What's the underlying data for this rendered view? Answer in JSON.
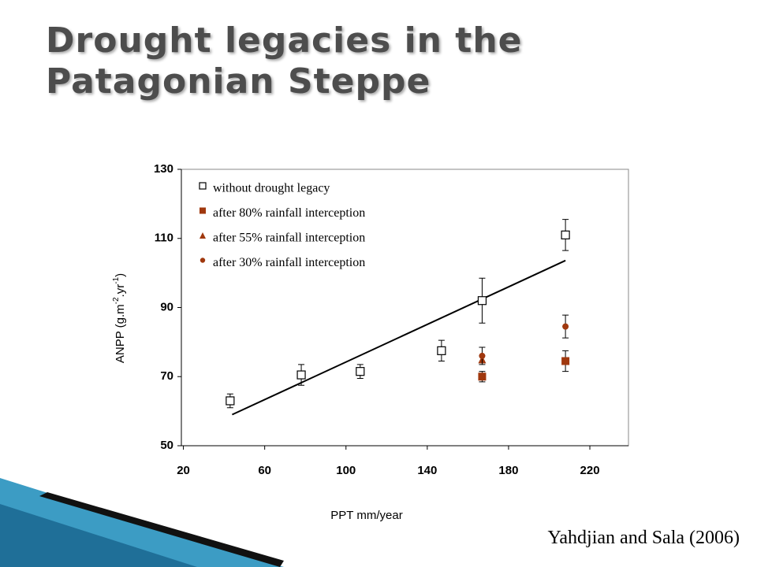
{
  "chart_data": {
    "type": "scatter",
    "title": "Drought legacies in the Patagonian Steppe",
    "x_label": "PPT mm/year",
    "y_label_parts": [
      "ANPP (g.m",
      "-2",
      ".yr",
      "-1",
      ")"
    ],
    "citation": "Yahdjian and Sala (2006)",
    "xlim": [
      19,
      239
    ],
    "xticks": [
      20,
      60,
      100,
      140,
      180,
      220
    ],
    "ylim": [
      50,
      130
    ],
    "yticks": [
      50,
      70,
      90,
      110,
      130
    ],
    "grid": false,
    "series": [
      {
        "name": "without drought legacy",
        "marker": "square-open",
        "color": "#000000",
        "x": [
          43,
          78,
          107,
          147,
          167,
          208
        ],
        "values": [
          63,
          70.5,
          71.5,
          77.5,
          92,
          111
        ],
        "errors": [
          2,
          3,
          2,
          3,
          6.5,
          4.5
        ]
      },
      {
        "name": "after 80% rainfall interception",
        "marker": "square",
        "color": "#a0380e",
        "x": [
          167,
          208
        ],
        "values": [
          70,
          74.5
        ],
        "errors": [
          1.5,
          3
        ]
      },
      {
        "name": "after 55% rainfall  interception",
        "marker": "triangle",
        "color": "#a0380e",
        "x": [
          167
        ],
        "values": [
          75
        ],
        "errors": [
          1
        ]
      },
      {
        "name": "after 30% rainfall interception",
        "marker": "circle",
        "color": "#a0380e",
        "x": [
          167,
          208
        ],
        "values": [
          76,
          84.5
        ],
        "errors": [
          2.5,
          3.3
        ]
      }
    ],
    "fit": {
      "x": [
        44,
        208
      ],
      "values": [
        59,
        103.6
      ]
    }
  }
}
